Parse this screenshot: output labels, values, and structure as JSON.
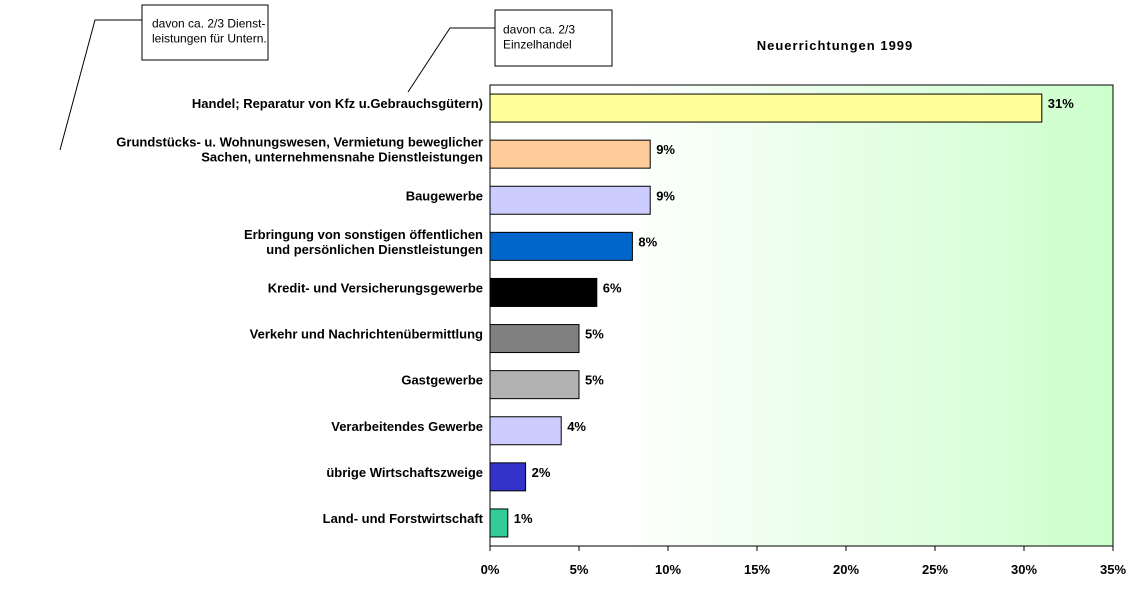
{
  "chart_data": {
    "type": "bar",
    "orientation": "horizontal",
    "title": "Neuerrichtungen 1999",
    "annotations": [
      "davon ca. 2/3 Dienst-\nleistungen für Untern.",
      "davon ca. 2/3\nEinzelhandel"
    ],
    "categories": [
      "Handel; Reparatur von Kfz u.Gebrauchsgütern)",
      "Grundstücks- u. Wohnungswesen, Vermietung beweglicher\nSachen, unternehmensnahe  Dienstleistungen",
      "Baugewerbe",
      "Erbringung von   sonstigen öffentlichen\nund persönlichen Dienstleistungen",
      "Kredit- und  Versicherungsgewerbe",
      "Verkehr und Nachrichtenübermittlung",
      "Gastgewerbe",
      "Verarbeitendes Gewerbe",
      "übrige Wirtschaftszweige",
      "Land- und Forstwirtschaft"
    ],
    "values": [
      31,
      9,
      9,
      8,
      6,
      5,
      5,
      4,
      2,
      1
    ],
    "value_labels": [
      "31%",
      "9%",
      "9%",
      "8%",
      "6%",
      "5%",
      "5%",
      "4%",
      "2%",
      "1%"
    ],
    "colors": [
      "#ffff99",
      "#ffcc99",
      "#ccccff",
      "#0066cc",
      "#000000",
      "#808080",
      "#b2b2b2",
      "#ccccff",
      "#3333cc",
      "#33cc99"
    ],
    "xlim": [
      0,
      35
    ],
    "xticks": [
      {
        "value": 0,
        "label": "0%"
      },
      {
        "value": 5,
        "label": "5%"
      },
      {
        "value": 10,
        "label": "10%"
      },
      {
        "value": 15,
        "label": "15%"
      },
      {
        "value": 20,
        "label": "20%"
      },
      {
        "value": 25,
        "label": "25%"
      },
      {
        "value": 30,
        "label": "30%"
      },
      {
        "value": 35,
        "label": "35%"
      }
    ]
  }
}
